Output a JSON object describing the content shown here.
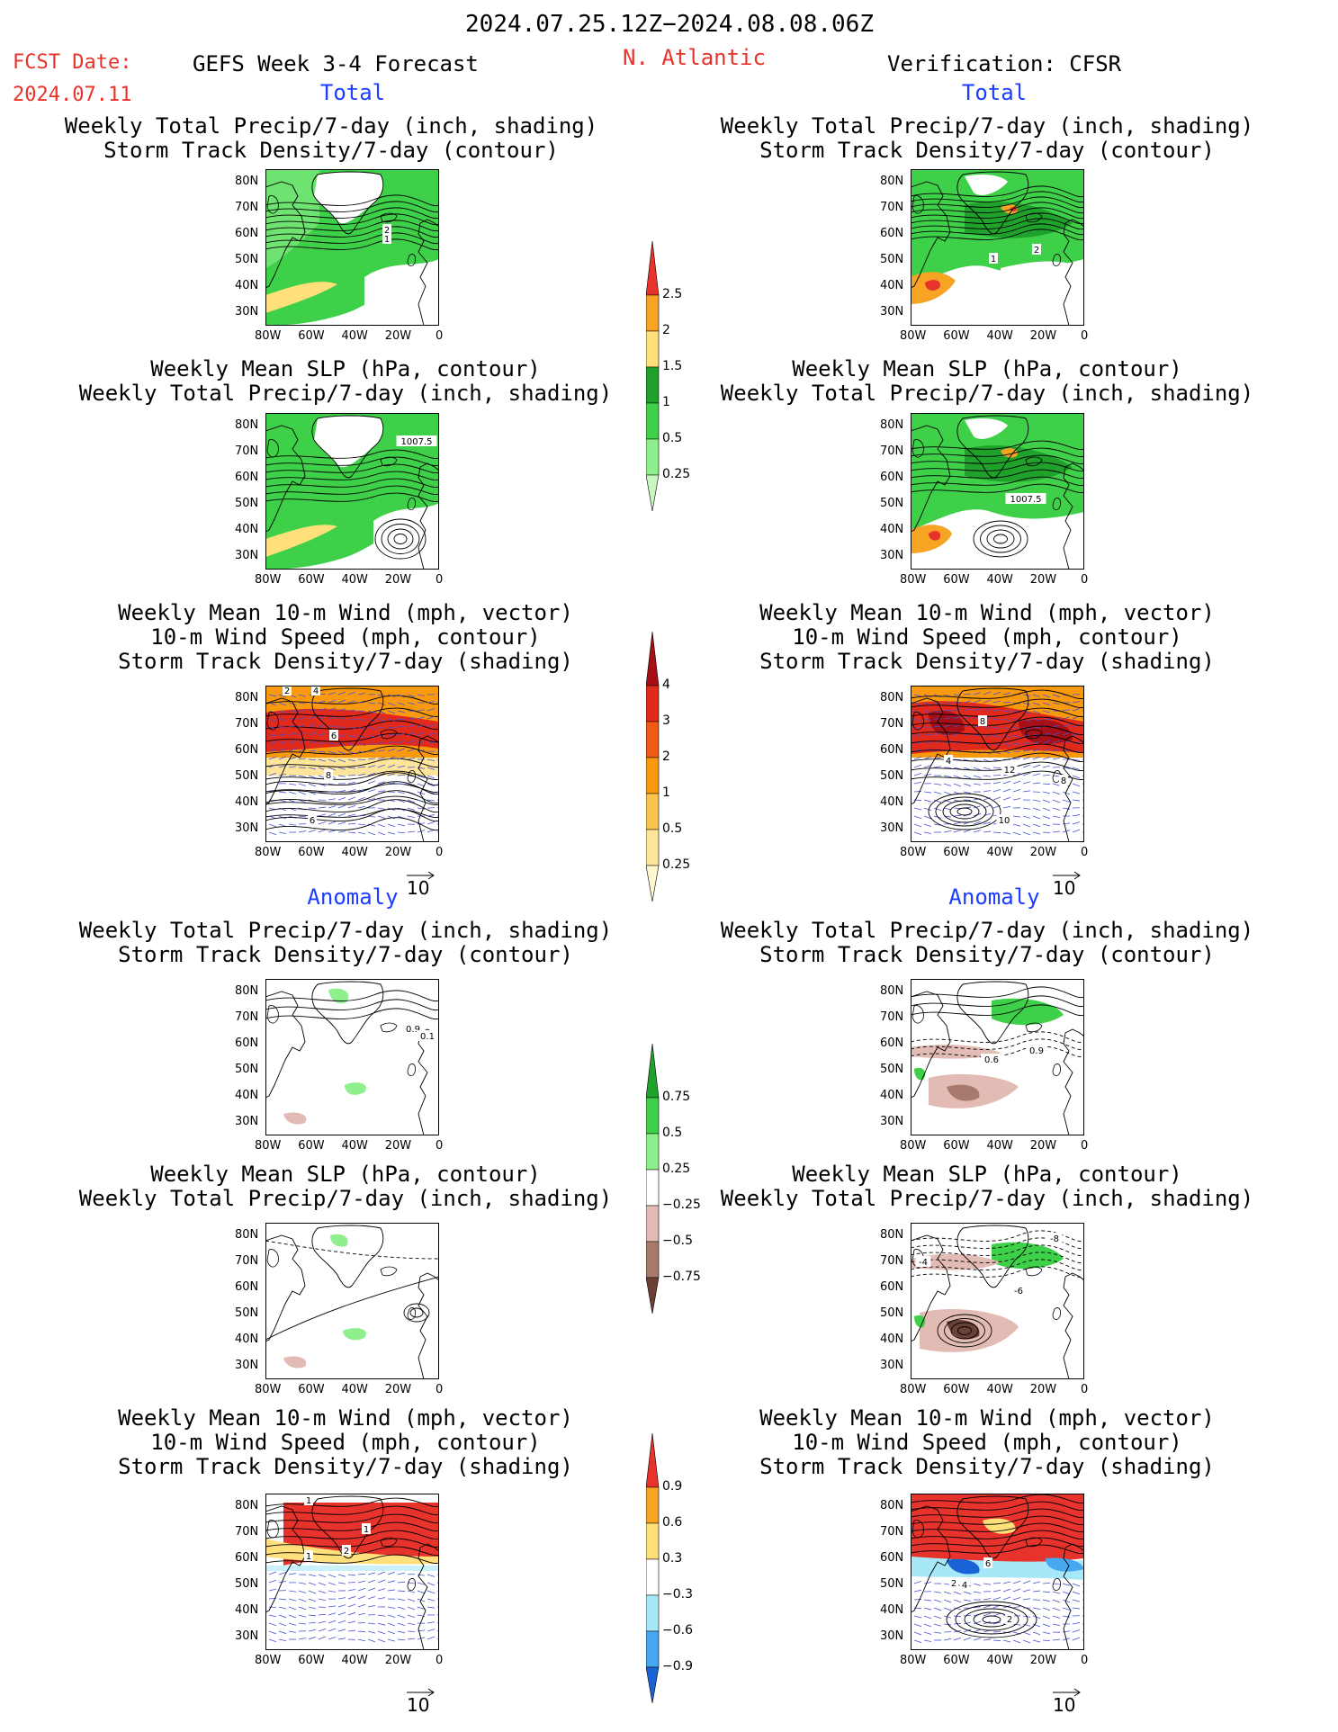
{
  "header": {
    "date_range": "2024.07.25.12Z−2024.08.08.06Z",
    "fcst_label": "FCST Date:",
    "fcst_date": "2024.07.11",
    "forecast_title": "GEFS Week 3-4 Forecast",
    "region": "N. Atlantic",
    "verification": "Verification: CFSR"
  },
  "sections": {
    "total": "Total",
    "anomaly": "Anomaly"
  },
  "titles": {
    "precip_shade": "Weekly Total Precip/7-day (inch, shading)",
    "storm_contour": "Storm Track Density/7-day (contour)",
    "slp_contour": "Weekly Mean SLP (hPa, contour)",
    "wind_vector": "Weekly Mean 10-m Wind (mph, vector)",
    "wind_speed": "10-m Wind Speed (mph, contour)",
    "storm_shade": "Storm Track Density/7-day (shading)"
  },
  "axes": {
    "x_ticks": [
      "80W",
      "60W",
      "40W",
      "20W",
      "0"
    ],
    "y_ticks": [
      "80N",
      "70N",
      "60N",
      "50N",
      "40N",
      "30N"
    ]
  },
  "vector_ref": "10",
  "contour_labels": {
    "f_tp": [
      "2",
      "1"
    ],
    "v_tp": [
      "1",
      "2"
    ],
    "f_ts": [
      "1007.5"
    ],
    "v_ts": [
      "1007.5"
    ],
    "f_tw": [
      "2",
      "4",
      "6",
      "8",
      "6"
    ],
    "v_tw": [
      "8",
      "4",
      "12",
      "10",
      "8"
    ],
    "f_ap": [
      "0.9",
      "0.1"
    ],
    "v_ap": [
      "0.6",
      "0.9"
    ],
    "v_as": [
      "-8",
      "-4",
      "-6"
    ],
    "f_aw": [
      "1",
      "1",
      "2",
      "1"
    ],
    "v_aw": [
      "6",
      "2",
      "4",
      "2"
    ]
  },
  "colorbars": {
    "precip_total": {
      "labels": [
        "2.5",
        "2",
        "1.5",
        "1",
        "0.5",
        "0.25"
      ],
      "colors": [
        "#e8332c",
        "#f7a323",
        "#ffe07a",
        "#1fa12c",
        "#3fd04a",
        "#8ef08c",
        "#c8f7c0"
      ]
    },
    "storm_total": {
      "labels": [
        "4",
        "3",
        "2",
        "1",
        "0.5",
        "0.25"
      ],
      "colors": [
        "#a50f15",
        "#e12a1c",
        "#f25a14",
        "#f99a0e",
        "#fbc44a",
        "#fde59b",
        "#fff7cf"
      ]
    },
    "precip_anom": {
      "labels": [
        "0.75",
        "0.5",
        "0.25",
        "−0.25",
        "−0.5",
        "−0.75"
      ],
      "colors": [
        "#1fa12c",
        "#3fd04a",
        "#8ef08c",
        "#ffffff",
        "#e2bcb4",
        "#a77a6d",
        "#6b4036"
      ]
    },
    "storm_anom": {
      "labels": [
        "0.9",
        "0.6",
        "0.3",
        "−0.3",
        "−0.6",
        "−0.9"
      ],
      "colors": [
        "#e8332c",
        "#f7a323",
        "#ffe07a",
        "#ffffff",
        "#a6e8f8",
        "#46a8f0",
        "#1a63d6"
      ]
    }
  }
}
